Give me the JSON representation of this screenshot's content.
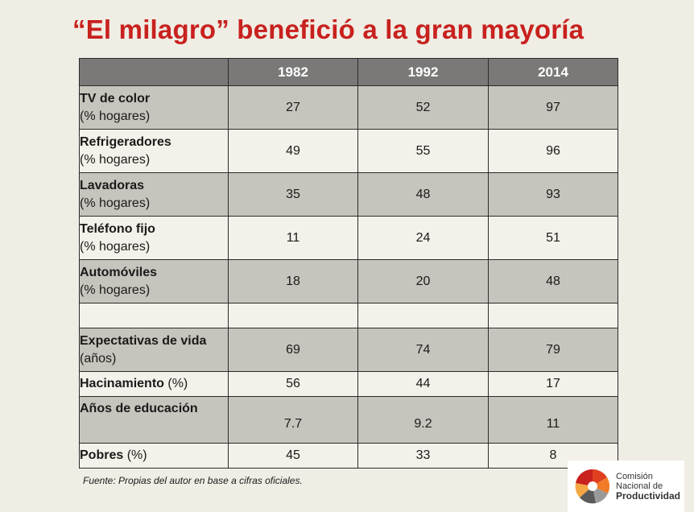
{
  "title": "“El milagro” benefició a la gran mayoría",
  "table": {
    "headers": [
      "",
      "1982",
      "1992",
      "2014"
    ],
    "rows": [
      {
        "label": "TV de color",
        "unit": "(% hogares)",
        "values": [
          "27",
          "52",
          "97"
        ]
      },
      {
        "label": "Refrigeradores",
        "unit": "(% hogares)",
        "values": [
          "49",
          "55",
          "96"
        ]
      },
      {
        "label": "Lavadoras",
        "unit": "(% hogares)",
        "values": [
          "35",
          "48",
          "93"
        ]
      },
      {
        "label": "Teléfono fijo",
        "unit": "(% hogares)",
        "values": [
          "11",
          "24",
          "51"
        ]
      },
      {
        "label": "Automóviles",
        "unit": "(% hogares)",
        "values": [
          "18",
          "20",
          "48"
        ]
      },
      {
        "label": "Expectativas de vida",
        "unit": "(años)",
        "values": [
          "69",
          "74",
          "79"
        ]
      },
      {
        "label": "Hacinamiento",
        "unit": "(%)",
        "values": [
          "56",
          "44",
          "17"
        ]
      },
      {
        "label": "Años de educación",
        "unit": "",
        "values": [
          "7.7",
          "9.2",
          "11"
        ]
      },
      {
        "label": "Pobres",
        "unit": "(%)",
        "values": [
          "45",
          "33",
          "8"
        ]
      }
    ]
  },
  "source": "Fuente: Propias del autor en base a cifras oficiales.",
  "logo": {
    "line1": "Comisión",
    "line2": "Nacional de",
    "line3": "Productividad",
    "icon": "pinwheel-logo-icon",
    "colors": [
      "#e0401f",
      "#f07c2a",
      "#f5a742",
      "#9a9a9a",
      "#5a5a5a"
    ]
  }
}
